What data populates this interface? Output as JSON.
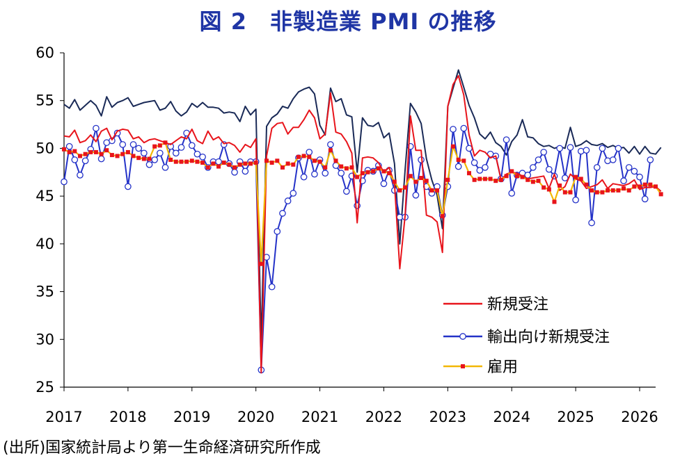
{
  "title": "図 2　非製造業 PMI の推移",
  "source": "(出所)国家統計局より第一生命経済研究所作成",
  "colors": {
    "title": "#1f35a5",
    "new_orders": "#e8141b",
    "export_orders": "#2432c8",
    "employment": "#f2b705",
    "employment_marker": "#e8141b",
    "business_activity": "#1a2a57",
    "axis": "#000000"
  },
  "chart_data": {
    "type": "line",
    "title": "図 2　非製造業 PMI の推移",
    "xlabel": "",
    "ylabel": "",
    "ylim": [
      25,
      60
    ],
    "xlim": [
      2017.0,
      2026.25
    ],
    "y_ticks": [
      "25",
      "30",
      "35",
      "40",
      "45",
      "50",
      "55",
      "60"
    ],
    "x_ticks": [
      "2017",
      "2018",
      "2019",
      "2020",
      "2021",
      "2022",
      "2023",
      "2024",
      "2025",
      "2026"
    ],
    "grid": false,
    "legend_position": "bottom-right",
    "start": "2017-01",
    "frequency": "monthly",
    "series": [
      {
        "name": "",
        "key": "business_activity",
        "color": "#1a2a57",
        "marker": "none",
        "values": [
          54.6,
          54.2,
          55.1,
          54.0,
          54.5,
          55.0,
          54.5,
          53.4,
          55.4,
          54.3,
          54.8,
          55.0,
          55.3,
          54.4,
          54.6,
          54.8,
          54.9,
          55.0,
          54.0,
          54.2,
          54.9,
          53.9,
          53.4,
          53.8,
          54.7,
          54.3,
          54.8,
          54.3,
          54.3,
          54.2,
          53.7,
          53.8,
          53.7,
          52.8,
          54.4,
          53.5,
          54.1,
          29.6,
          52.3,
          53.2,
          53.6,
          54.4,
          54.2,
          55.2,
          55.9,
          56.2,
          56.4,
          55.7,
          52.4,
          51.4,
          56.3,
          54.9,
          55.2,
          53.5,
          53.3,
          47.5,
          53.2,
          52.4,
          52.3,
          52.7,
          51.1,
          51.6,
          48.4,
          40.0,
          47.8,
          54.7,
          53.8,
          52.6,
          48.9,
          46.7,
          45.1,
          41.6,
          54.4,
          56.3,
          58.2,
          56.4,
          54.5,
          53.2,
          51.5,
          51.0,
          51.7,
          50.6,
          50.2,
          49.3,
          50.7,
          51.4,
          53.0,
          51.2,
          51.1,
          50.5,
          50.2,
          50.3,
          50.0,
          50.2,
          50.0,
          52.2,
          50.2,
          50.4,
          50.8,
          50.4,
          50.3,
          50.5,
          50.1,
          50.3,
          50.0,
          50.1,
          49.5,
          50.2,
          49.4,
          50.2,
          49.5,
          49.4,
          50.1
        ]
      },
      {
        "name": "新規受注",
        "key": "new_orders",
        "color": "#e8141b",
        "marker": "none",
        "values": [
          51.3,
          51.2,
          51.9,
          50.6,
          50.8,
          51.4,
          50.7,
          51.8,
          52.1,
          50.9,
          51.8,
          52.0,
          51.9,
          51.0,
          51.2,
          50.6,
          50.9,
          51.0,
          50.8,
          50.6,
          50.4,
          50.8,
          51.2,
          51.0,
          52.0,
          50.8,
          50.5,
          51.8,
          50.9,
          51.2,
          50.5,
          50.6,
          50.3,
          49.6,
          50.4,
          50.1,
          51.0,
          26.5,
          49.2,
          52.1,
          52.6,
          52.7,
          51.5,
          52.2,
          52.2,
          53.0,
          54.0,
          53.2,
          51.0,
          51.5,
          55.8,
          51.7,
          51.5,
          50.7,
          49.5,
          42.2,
          49.0,
          49.1,
          49.0,
          48.5,
          47.5,
          48.0,
          46.3,
          37.4,
          43.0,
          53.4,
          49.8,
          49.8,
          43.0,
          42.8,
          42.3,
          39.1,
          54.4,
          56.7,
          57.6,
          55.6,
          51.4,
          49.2,
          49.8,
          49.6,
          49.0,
          49.2,
          46.7,
          47.3,
          47.5,
          47.4,
          47.1,
          46.8,
          46.9,
          47.0,
          47.1,
          45.8,
          47.3,
          45.6,
          46.0,
          47.3,
          46.8,
          46.6,
          45.8,
          46.0,
          46.2,
          46.7,
          45.8,
          46.3,
          46.2,
          46.1,
          46.3,
          46.7,
          45.7,
          45.9,
          45.9,
          46.0,
          45.5
        ]
      },
      {
        "name": "輸出向け新規受注",
        "key": "export_orders",
        "color": "#2432c8",
        "marker": "circle",
        "values": [
          46.5,
          50.2,
          48.8,
          47.2,
          48.7,
          49.9,
          52.1,
          48.9,
          50.6,
          50.8,
          51.6,
          50.4,
          46.0,
          50.4,
          50.0,
          49.5,
          48.3,
          48.8,
          49.5,
          48.0,
          50.2,
          49.5,
          50.1,
          51.6,
          50.3,
          49.4,
          49.1,
          48.0,
          48.6,
          48.6,
          50.4,
          48.4,
          47.5,
          48.6,
          47.6,
          48.6,
          48.6,
          26.8,
          38.6,
          35.5,
          41.3,
          43.2,
          44.5,
          45.3,
          49.0,
          47.0,
          49.6,
          47.3,
          48.8,
          47.4,
          50.4,
          48.2,
          47.4,
          45.5,
          47.1,
          44.0,
          46.6,
          47.7,
          47.6,
          48.2,
          46.3,
          47.7,
          45.6,
          42.8,
          42.8,
          50.2,
          45.1,
          48.8,
          46.0,
          45.3,
          46.0,
          43.0,
          46.0,
          52.0,
          48.1,
          52.1,
          50.0,
          48.5,
          47.7,
          48.0,
          49.4,
          49.2,
          46.8,
          50.9,
          45.3,
          47.2,
          47.4,
          47.2,
          48.0,
          48.8,
          49.6,
          47.8,
          47.1,
          50.0,
          46.9,
          50.1,
          44.6,
          49.7,
          49.8,
          42.2,
          48.0,
          50.0,
          48.7,
          48.8,
          50.0,
          46.6,
          48.0,
          47.6,
          47.0,
          44.7,
          48.8
        ]
      },
      {
        "name": "雇用",
        "key": "employment",
        "color": "#f2b705",
        "marker": "square",
        "values": [
          49.9,
          49.6,
          49.7,
          49.2,
          49.4,
          49.6,
          49.6,
          49.4,
          49.8,
          49.3,
          49.2,
          49.4,
          49.6,
          49.2,
          49.0,
          48.9,
          48.9,
          50.2,
          50.3,
          50.6,
          48.8,
          48.6,
          48.6,
          48.6,
          48.7,
          48.6,
          48.5,
          48.0,
          48.4,
          48.1,
          48.5,
          48.3,
          48.0,
          48.3,
          48.4,
          48.4,
          48.5,
          37.9,
          48.7,
          48.5,
          48.7,
          48.0,
          48.4,
          48.3,
          49.1,
          49.2,
          49.1,
          48.7,
          48.6,
          48.0,
          49.8,
          48.7,
          48.1,
          47.9,
          48.0,
          47.0,
          47.4,
          47.5,
          47.6,
          47.9,
          47.6,
          47.4,
          46.5,
          45.6,
          45.9,
          47.1,
          46.5,
          46.9,
          46.6,
          45.6,
          45.6,
          42.9,
          46.7,
          50.2,
          48.8,
          48.7,
          47.4,
          46.7,
          46.8,
          46.8,
          46.8,
          46.6,
          46.7,
          47.1,
          47.6,
          47.1,
          47.0,
          46.7,
          46.5,
          46.6,
          45.9,
          45.7,
          44.4,
          46.1,
          45.4,
          45.4,
          47.0,
          46.8,
          46.2,
          45.6,
          45.4,
          45.4,
          45.6,
          45.6,
          45.6,
          45.8,
          45.6,
          46.0,
          46.0,
          46.2,
          46.2,
          46.0,
          45.2
        ]
      }
    ],
    "legend": [
      {
        "label": "新規受注",
        "key": "new_orders"
      },
      {
        "label": "輸出向け新規受注",
        "key": "export_orders"
      },
      {
        "label": "雇用",
        "key": "employment"
      }
    ]
  }
}
